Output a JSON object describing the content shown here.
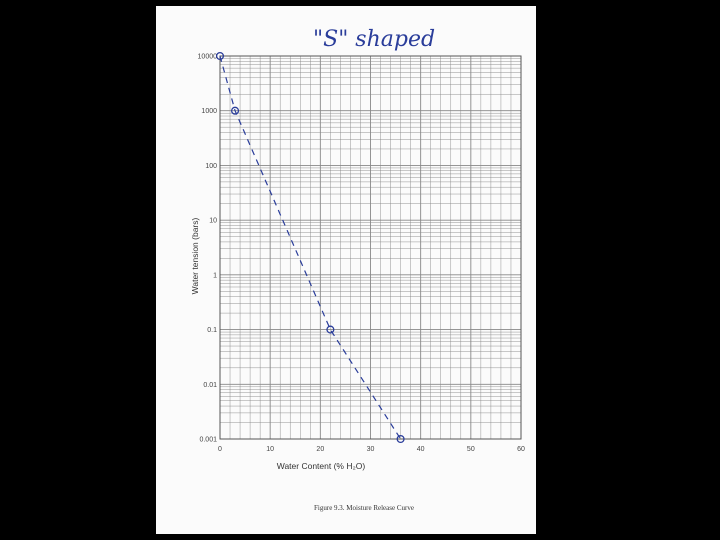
{
  "chart_data": {
    "type": "scatter",
    "annotation": "\"S\" shaped",
    "xlabel": "Water Content (% H₂O)",
    "ylabel": "Water tension (bars)",
    "caption": "Figure 9.3. Moisture Release Curve",
    "xlim": [
      0,
      60
    ],
    "ylim": [
      0.001,
      10000
    ],
    "yscale": "log",
    "x_ticks": [
      "0",
      "10",
      "20",
      "30",
      "40",
      "50",
      "60"
    ],
    "y_ticks": [
      "0.001",
      "0.01",
      "0.1",
      "1",
      "10",
      "100",
      "1000",
      "10000"
    ],
    "grid": true,
    "series": [
      {
        "style": "dashed line with circle markers",
        "points": [
          {
            "x": 0,
            "y": 10000
          },
          {
            "x": 3,
            "y": 1000
          },
          {
            "x": 22,
            "y": 0.1
          },
          {
            "x": 36,
            "y": 0.001
          }
        ]
      }
    ],
    "colors": {
      "ink": "#2a3d9a",
      "grid": "#888888"
    }
  }
}
